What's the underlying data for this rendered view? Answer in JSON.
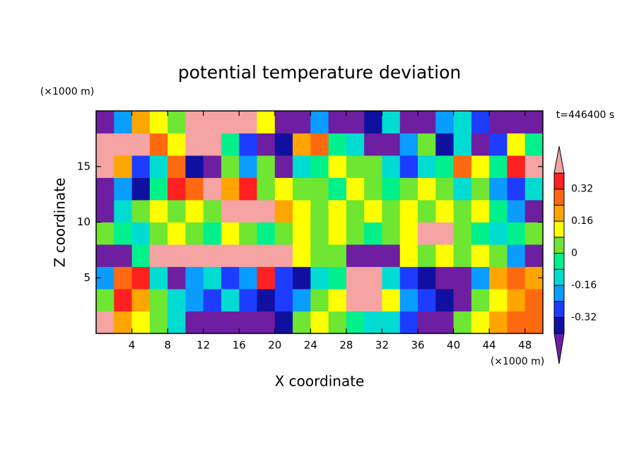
{
  "chart_data": {
    "type": "contour",
    "title": "potential temperature deviation",
    "x_label": "X coordinate",
    "y_label": "Z coordinate",
    "x_unit": "(×1000 m)",
    "y_unit": "(×1000 m)",
    "annotation": "t=446400 s",
    "x": [
      1,
      3,
      5,
      7,
      9,
      11,
      13,
      15,
      17,
      19,
      21,
      23,
      25,
      27,
      29,
      31,
      33,
      35,
      37,
      39,
      41,
      43,
      45,
      47,
      49
    ],
    "y": [
      1,
      3,
      5,
      7,
      9,
      11,
      13,
      15,
      17,
      19
    ],
    "values": [
      [
        0.45,
        0.2,
        0.12,
        0.04,
        -0.12,
        -0.45,
        -0.45,
        -0.45,
        -0.45,
        -0.45,
        -0.36,
        0.04,
        0.12,
        0.04,
        -0.04,
        -0.12,
        -0.12,
        -0.28,
        -0.45,
        -0.45,
        0.04,
        0.12,
        0.2,
        0.28,
        0.28
      ],
      [
        0.04,
        0.36,
        0.2,
        0.04,
        -0.12,
        -0.2,
        -0.28,
        -0.12,
        -0.28,
        -0.36,
        -0.28,
        -0.2,
        0.04,
        0.12,
        0.45,
        0.45,
        0.12,
        -0.2,
        -0.28,
        -0.36,
        -0.45,
        0.04,
        0.12,
        0.2,
        0.28
      ],
      [
        -0.2,
        0.28,
        0.36,
        -0.12,
        -0.45,
        -0.2,
        -0.12,
        -0.28,
        -0.2,
        0.36,
        -0.28,
        -0.36,
        -0.12,
        -0.04,
        0.45,
        0.45,
        -0.12,
        -0.28,
        -0.36,
        -0.45,
        -0.45,
        -0.2,
        0.2,
        0.28,
        0.2
      ],
      [
        -0.45,
        -0.45,
        -0.04,
        0.45,
        0.45,
        0.45,
        0.45,
        0.45,
        0.45,
        0.45,
        0.45,
        0.12,
        0.04,
        0.04,
        -0.45,
        -0.45,
        -0.45,
        0.12,
        0.04,
        0.12,
        0.04,
        0.12,
        0.04,
        -0.2,
        -0.45
      ],
      [
        0.04,
        -0.04,
        -0.12,
        0.04,
        0.12,
        0.04,
        -0.04,
        0.12,
        0.04,
        -0.04,
        0.04,
        0.12,
        0.04,
        0.12,
        0.04,
        -0.04,
        0.04,
        0.12,
        0.45,
        0.45,
        0.04,
        -0.04,
        -0.12,
        -0.04,
        0.04
      ],
      [
        -0.45,
        -0.12,
        0.04,
        0.12,
        0.04,
        0.12,
        0.04,
        0.45,
        0.45,
        0.45,
        0.2,
        0.12,
        0.04,
        0.12,
        0.04,
        0.12,
        0.04,
        0.12,
        0.04,
        0.12,
        0.04,
        0.12,
        -0.04,
        -0.2,
        -0.45
      ],
      [
        -0.45,
        -0.2,
        -0.36,
        -0.04,
        0.36,
        0.28,
        0.45,
        0.2,
        0.36,
        0.04,
        0.12,
        0.04,
        0.04,
        -0.04,
        0.12,
        0.04,
        -0.04,
        0.04,
        0.12,
        0.04,
        -0.12,
        0.04,
        -0.2,
        -0.28,
        -0.12
      ],
      [
        0.45,
        0.2,
        -0.28,
        -0.12,
        0.28,
        -0.36,
        -0.45,
        0.04,
        -0.2,
        0.04,
        -0.45,
        -0.12,
        -0.04,
        0.12,
        0.04,
        0.04,
        -0.12,
        -0.28,
        -0.12,
        -0.04,
        0.28,
        0.12,
        -0.04,
        0.36,
        0.45
      ],
      [
        0.45,
        0.45,
        0.45,
        0.28,
        0.12,
        0.45,
        0.45,
        -0.04,
        -0.28,
        -0.45,
        -0.36,
        0.2,
        0.28,
        -0.04,
        -0.12,
        -0.45,
        -0.45,
        -0.2,
        0.04,
        -0.36,
        -0.12,
        -0.45,
        -0.28,
        0.12,
        -0.04
      ],
      [
        -0.45,
        -0.2,
        0.2,
        0.12,
        0.04,
        0.45,
        0.45,
        0.45,
        0.45,
        0.12,
        -0.45,
        -0.45,
        -0.2,
        -0.45,
        -0.45,
        -0.36,
        -0.12,
        -0.45,
        -0.45,
        -0.2,
        -0.12,
        -0.28,
        -0.45,
        -0.45,
        -0.45
      ]
    ],
    "xlim": [
      0,
      50
    ],
    "ylim": [
      0,
      20
    ],
    "xticks": [
      4,
      8,
      12,
      16,
      20,
      24,
      28,
      32,
      36,
      40,
      44,
      48
    ],
    "yticks": [
      5,
      10,
      15
    ],
    "levels": [
      -0.4,
      -0.32,
      -0.24,
      -0.16,
      -0.08,
      0,
      0.08,
      0.16,
      0.24,
      0.32,
      0.4
    ],
    "colors": [
      "#6e1ea0",
      "#1010a0",
      "#1e3cff",
      "#0a9cff",
      "#00dcd2",
      "#00f08c",
      "#6ee632",
      "#ffff00",
      "#ffa500",
      "#ff6a10",
      "#ff2020",
      "#f5a3a3"
    ],
    "colorbar_ticks": [
      -0.32,
      -0.16,
      0,
      0.16,
      0.32
    ]
  }
}
